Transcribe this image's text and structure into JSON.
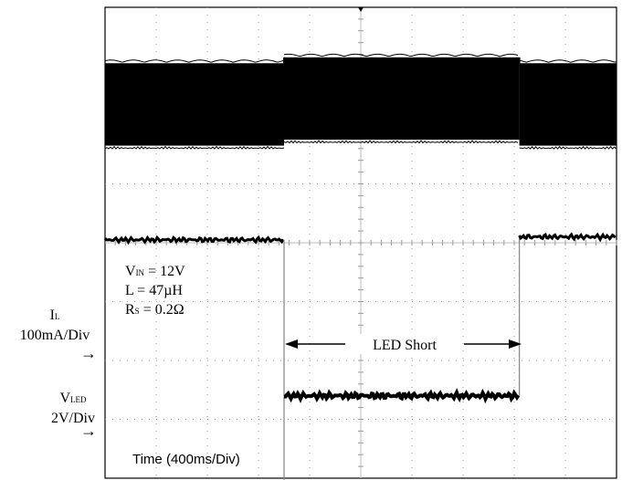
{
  "chart_data": {
    "type": "line",
    "title": "",
    "grid": true,
    "divisions": {
      "x": 10,
      "y": 8
    },
    "xlabel": "Time (400ms/Div)",
    "annotation": "LED Short",
    "conditions": [
      {
        "prefix": "V",
        "sub": "IN",
        "suffix": " = 12V"
      },
      {
        "prefix": "L = 47µH",
        "sub": "",
        "suffix": ""
      },
      {
        "prefix": "R",
        "sub": "S",
        "suffix": " = 0.2Ω"
      }
    ],
    "channels": [
      {
        "prefix": "I",
        "sub": "L",
        "scale": "100mA/Div",
        "marker": "→"
      },
      {
        "prefix": "V",
        "sub": "LED",
        "scale": "2V/Div",
        "marker": "→"
      }
    ],
    "short_interval_div": [
      3.5,
      8.1
    ],
    "series": [
      {
        "name": "IL",
        "x_div": [
          0,
          3.5,
          3.5,
          8.1,
          8.1,
          10
        ],
        "band_top_div": [
          7.05,
          7.05,
          7.15,
          7.15,
          7.05,
          7.05
        ],
        "band_bottom_div": [
          5.65,
          5.65,
          5.75,
          5.75,
          5.65,
          5.65
        ]
      },
      {
        "name": "VLED",
        "x_div": [
          0,
          3.5,
          3.5,
          3.5,
          8.1,
          8.1,
          8.1,
          10
        ],
        "y_div": [
          4.05,
          4.05,
          4.05,
          -0.05,
          1.4,
          1.4,
          4.1,
          4.1
        ]
      }
    ]
  }
}
